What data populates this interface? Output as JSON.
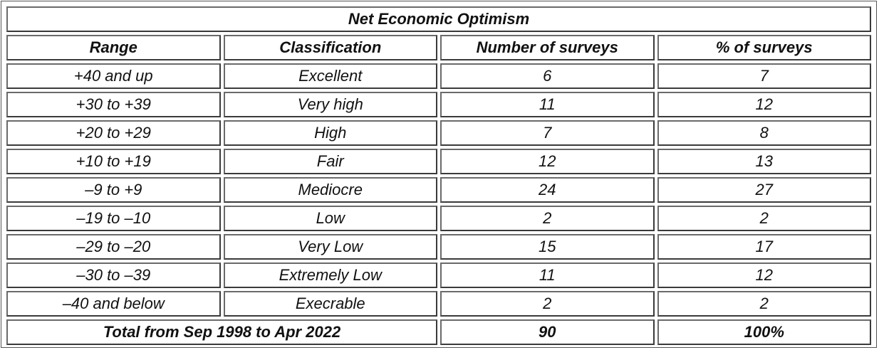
{
  "table": {
    "title": "Net Economic Optimism",
    "headers": [
      "Range",
      "Classification",
      "Number of surveys",
      "% of surveys"
    ],
    "rows": [
      [
        "+40 and up",
        "Excellent",
        "6",
        "7"
      ],
      [
        "+30 to +39",
        "Very high",
        "11",
        "12"
      ],
      [
        "+20 to +29",
        "High",
        "7",
        "8"
      ],
      [
        "+10 to +19",
        "Fair",
        "12",
        "13"
      ],
      [
        "–9 to +9",
        "Mediocre",
        "24",
        "27"
      ],
      [
        "–19 to –10",
        "Low",
        "2",
        "2"
      ],
      [
        "–29 to –20",
        "Very Low",
        "15",
        "17"
      ],
      [
        "–30 to –39",
        "Extremely Low",
        "11",
        "12"
      ],
      [
        "–40 and below",
        "Execrable",
        "2",
        "2"
      ]
    ],
    "total": {
      "label": "Total from Sep 1998 to Apr 2022",
      "count": "90",
      "percent": "100%"
    }
  }
}
